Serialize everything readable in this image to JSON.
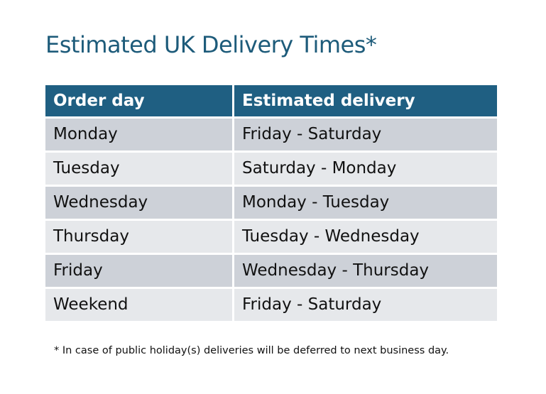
{
  "title": "Estimated UK Delivery Times*",
  "headers": [
    "Order day",
    "Estimated delivery"
  ],
  "rows": [
    [
      "Monday",
      "Friday - Saturday"
    ],
    [
      "Tuesday",
      "Saturday - Monday"
    ],
    [
      "Wednesday",
      "Monday - Tuesday"
    ],
    [
      "Thursday",
      "Tuesday - Wednesday"
    ],
    [
      "Friday",
      "Wednesday - Thursday"
    ],
    [
      "Weekend",
      "Friday - Saturday"
    ]
  ],
  "footnote": "* In case of public holiday(s) deliveries will be deferred to next business day.",
  "colors": {
    "header": "#1f5f82",
    "title": "#1d5b7a",
    "row_odd": "#cdd1d8",
    "row_even": "#e6e8eb"
  }
}
